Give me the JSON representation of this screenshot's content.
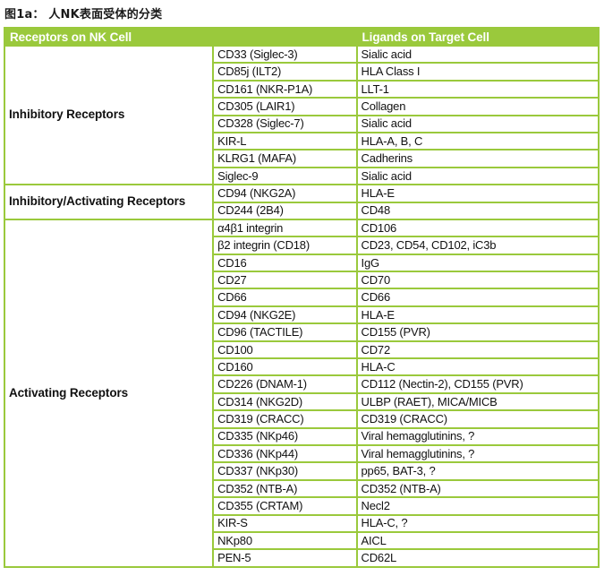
{
  "title": "图1a：  人NK表面受体的分类",
  "colors": {
    "table_green": "#9AC93C",
    "header_text": "#ffffff",
    "body_text": "#111111"
  },
  "table": {
    "header": {
      "receptors": "Receptors on NK Cell",
      "ligands": "Ligands on Target Cell"
    },
    "groups": [
      {
        "label": "Inhibitory Receptors",
        "rows": [
          [
            "CD33 (Siglec-3)",
            "Sialic acid"
          ],
          [
            "CD85j (ILT2)",
            "HLA Class I"
          ],
          [
            "CD161 (NKR-P1A)",
            "LLT-1"
          ],
          [
            "CD305 (LAIR1)",
            "Collagen"
          ],
          [
            "CD328 (Siglec-7)",
            "Sialic acid"
          ],
          [
            "KIR-L",
            "HLA-A, B, C"
          ],
          [
            "KLRG1 (MAFA)",
            "Cadherins"
          ],
          [
            "Siglec-9",
            "Sialic acid"
          ]
        ]
      },
      {
        "label": "Inhibitory/Activating Receptors",
        "rows": [
          [
            "CD94 (NKG2A)",
            "HLA-E"
          ],
          [
            "CD244 (2B4)",
            "CD48"
          ]
        ]
      },
      {
        "label": "Activating Receptors",
        "rows": [
          [
            "α4β1 integrin",
            "CD106"
          ],
          [
            "β2 integrin (CD18)",
            "CD23, CD54, CD102, iC3b"
          ],
          [
            "CD16",
            "IgG"
          ],
          [
            "CD27",
            "CD70"
          ],
          [
            "CD66",
            "CD66"
          ],
          [
            "CD94 (NKG2E)",
            "HLA-E"
          ],
          [
            "CD96 (TACTILE)",
            "CD155 (PVR)"
          ],
          [
            "CD100",
            "CD72"
          ],
          [
            "CD160",
            "HLA-C"
          ],
          [
            "CD226 (DNAM-1)",
            "CD112 (Nectin-2), CD155 (PVR)"
          ],
          [
            "CD314 (NKG2D)",
            "ULBP (RAET), MICA/MICB"
          ],
          [
            "CD319 (CRACC)",
            "CD319 (CRACC)"
          ],
          [
            "CD335 (NKp46)",
            "Viral hemagglutinins, ?"
          ],
          [
            "CD336 (NKp44)",
            "Viral hemagglutinins, ?"
          ],
          [
            "CD337 (NKp30)",
            "pp65, BAT-3, ?"
          ],
          [
            "CD352 (NTB-A)",
            "CD352 (NTB-A)"
          ],
          [
            "CD355 (CRTAM)",
            "Necl2"
          ],
          [
            "KIR-S",
            "HLA-C, ?"
          ],
          [
            "NKp80",
            "AICL"
          ],
          [
            "PEN-5",
            "CD62L"
          ]
        ]
      }
    ]
  }
}
